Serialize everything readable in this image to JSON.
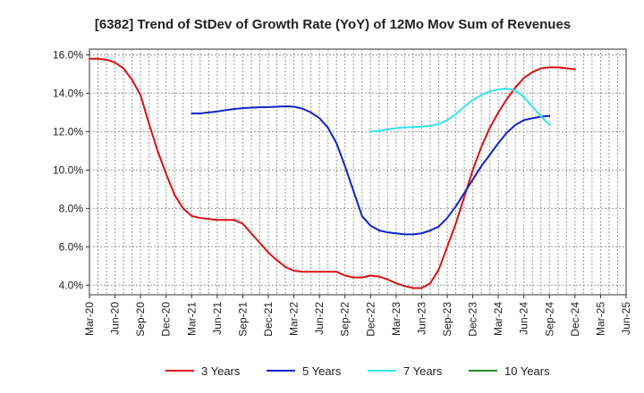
{
  "chart_data": {
    "type": "line",
    "title": "[6382]  Trend of StDev of Growth Rate (YoY) of 12Mo Mov Sum of Revenues",
    "xlabel": "",
    "ylabel": "",
    "ylim": [
      3.5,
      16.3
    ],
    "yticks": [
      4.0,
      6.0,
      8.0,
      10.0,
      12.0,
      14.0,
      16.0
    ],
    "ytick_labels": [
      "4.0%",
      "6.0%",
      "8.0%",
      "10.0%",
      "12.0%",
      "14.0%",
      "16.0%"
    ],
    "xticks": [
      "Mar-20",
      "Jun-20",
      "Sep-20",
      "Dec-20",
      "Mar-21",
      "Jun-21",
      "Sep-21",
      "Dec-21",
      "Mar-22",
      "Jun-22",
      "Sep-22",
      "Dec-22",
      "Mar-23",
      "Jun-23",
      "Sep-23",
      "Dec-23",
      "Mar-24",
      "Jun-24",
      "Sep-24",
      "Dec-24",
      "Mar-25",
      "Jun-25"
    ],
    "grid": true,
    "legend_position": "bottom",
    "series": [
      {
        "name": "3 Years",
        "color": "#dd1111",
        "start_index": 0,
        "values": [
          15.8,
          15.8,
          15.75,
          15.6,
          15.3,
          14.7,
          13.9,
          12.4,
          11.0,
          9.8,
          8.7,
          8.0,
          7.6,
          7.5,
          7.45,
          7.4,
          7.4,
          7.4,
          7.2,
          6.7,
          6.2,
          5.7,
          5.3,
          4.95,
          4.75,
          4.7,
          4.7,
          4.7,
          4.7,
          4.7,
          4.5,
          4.4,
          4.4,
          4.5,
          4.45,
          4.3,
          4.1,
          3.95,
          3.85,
          3.85,
          4.1,
          4.8,
          6.0,
          7.2,
          8.6,
          10.0,
          11.2,
          12.2,
          13.0,
          13.7,
          14.3,
          14.8,
          15.1,
          15.3,
          15.35,
          15.35,
          15.3,
          15.25
        ]
      },
      {
        "name": "5 Years",
        "color": "#1122cc",
        "start_index": 12,
        "values": [
          12.95,
          12.95,
          13.0,
          13.05,
          13.12,
          13.18,
          13.22,
          13.25,
          13.27,
          13.28,
          13.3,
          13.32,
          13.3,
          13.2,
          13.0,
          12.7,
          12.2,
          11.4,
          10.2,
          8.9,
          7.6,
          7.1,
          6.85,
          6.75,
          6.7,
          6.65,
          6.65,
          6.7,
          6.85,
          7.05,
          7.5,
          8.1,
          8.8,
          9.5,
          10.2,
          10.8,
          11.4,
          11.95,
          12.35,
          12.6,
          12.7,
          12.78,
          12.82
        ]
      },
      {
        "name": "7 Years",
        "color": "#33e5ee",
        "start_index": 33,
        "values": [
          12.0,
          12.05,
          12.12,
          12.18,
          12.22,
          12.24,
          12.26,
          12.3,
          12.4,
          12.6,
          12.9,
          13.3,
          13.65,
          13.9,
          14.1,
          14.2,
          14.25,
          14.15,
          13.8,
          13.3,
          12.8,
          12.35
        ]
      },
      {
        "name": "10 Years",
        "color": "#228b22",
        "start_index": 0,
        "values": []
      }
    ]
  }
}
